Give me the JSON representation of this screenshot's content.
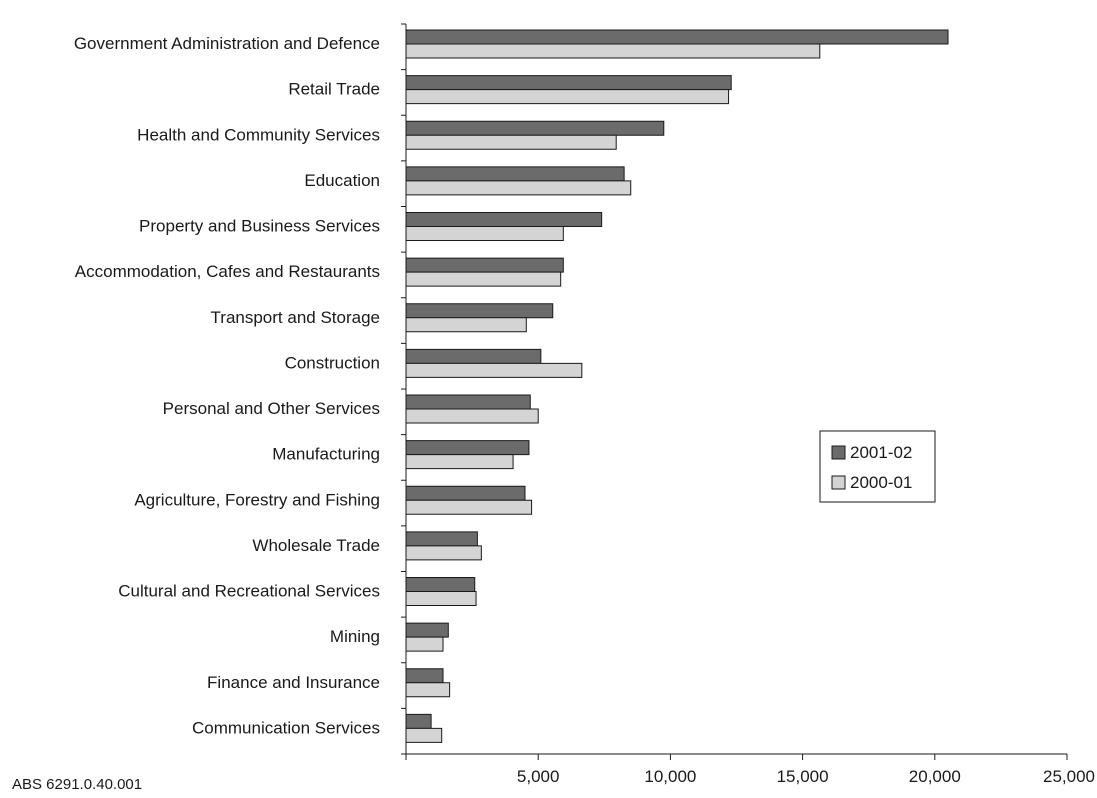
{
  "chart_data": {
    "type": "bar",
    "orientation": "horizontal",
    "categories": [
      "Government Administration and Defence",
      "Retail Trade",
      "Health and Community Services",
      "Education",
      "Property and Business Services",
      "Accommodation,  Cafes and Restaurants",
      "Transport and Storage",
      "Construction",
      "Personal and Other Services",
      "Manufacturing",
      "Agriculture, Forestry and Fishing",
      "Wholesale Trade",
      "Cultural and Recreational Services",
      "Mining",
      "Finance and Insurance",
      "Communication Services"
    ],
    "series": [
      {
        "name": "2001-02",
        "color": "#6b6b6b",
        "values": [
          20500,
          12300,
          9750,
          8250,
          7400,
          5950,
          5550,
          5100,
          4700,
          4650,
          4500,
          2700,
          2600,
          1600,
          1400,
          950
        ]
      },
      {
        "name": "2000-01",
        "color": "#d4d4d4",
        "values": [
          15650,
          12200,
          7950,
          8500,
          5950,
          5850,
          4550,
          6650,
          5000,
          4050,
          4750,
          2850,
          2650,
          1400,
          1650,
          1350
        ]
      }
    ],
    "xlim": [
      0,
      25000
    ],
    "xticks": [
      0,
      5000,
      10000,
      15000,
      20000,
      25000
    ],
    "xtick_labels": [
      "",
      "5,000",
      "10,000",
      "15,000",
      "20,000",
      "25,000"
    ],
    "legend_position": "right",
    "grid": false,
    "title": "",
    "xlabel": "",
    "ylabel": "",
    "source": "ABS 6291.0.40.001"
  }
}
